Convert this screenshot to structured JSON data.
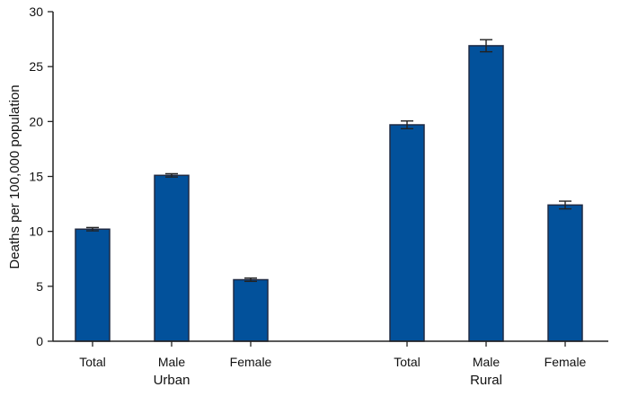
{
  "chart_data": {
    "type": "bar",
    "ylabel": "Deaths per 100,000 population",
    "ylim": [
      0,
      30
    ],
    "yticks": [
      0,
      5,
      10,
      15,
      20,
      25,
      30
    ],
    "grid": false,
    "colors": {
      "bar": "#02519b",
      "bar_edge": "#1f2a44",
      "axis": "#222222",
      "error": "#222222"
    },
    "groups": [
      {
        "label": "Urban",
        "categories": [
          "Total",
          "Male",
          "Female"
        ],
        "values": [
          10.2,
          15.1,
          5.6
        ],
        "error": [
          [
            10.05,
            10.35
          ],
          [
            14.95,
            15.25
          ],
          [
            5.45,
            5.75
          ]
        ]
      },
      {
        "label": "Rural",
        "categories": [
          "Total",
          "Male",
          "Female"
        ],
        "values": [
          19.7,
          26.9,
          12.4
        ],
        "error": [
          [
            19.35,
            20.05
          ],
          [
            26.35,
            27.45
          ],
          [
            12.05,
            12.75
          ]
        ]
      }
    ]
  }
}
